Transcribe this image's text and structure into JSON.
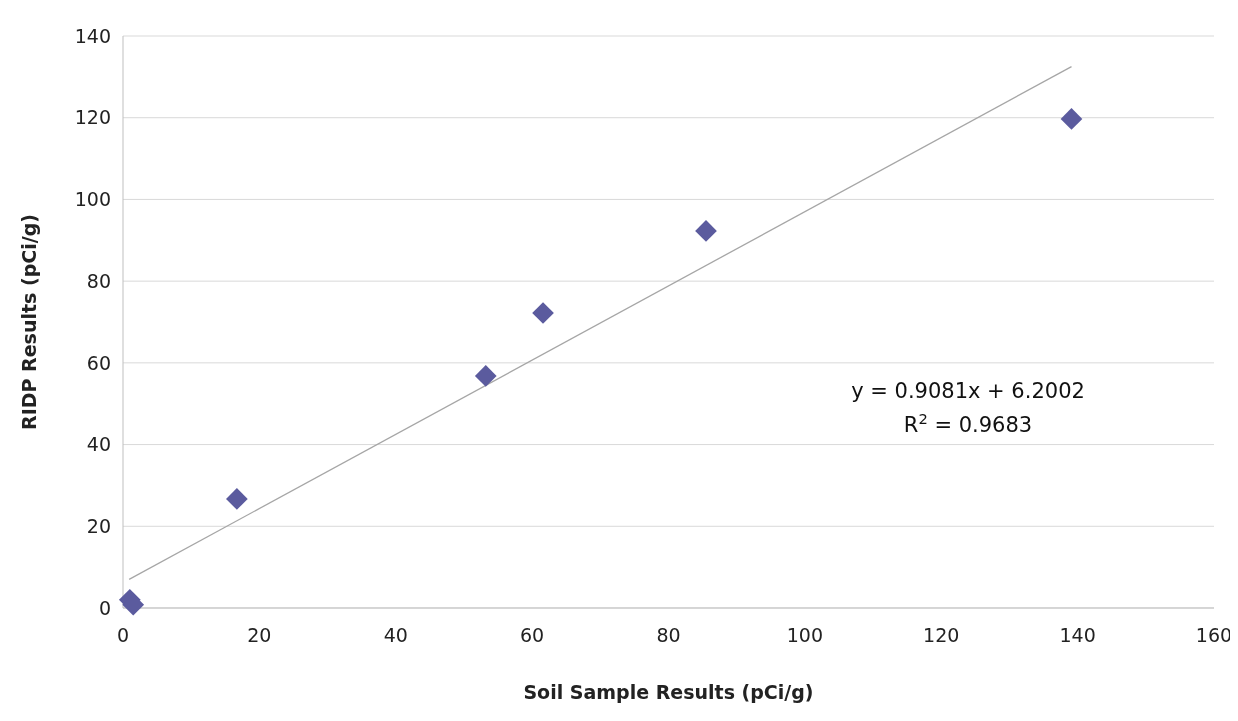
{
  "chart_data": {
    "type": "scatter",
    "xlabel": "Soil Sample Results (pCi/g)",
    "ylabel": "RIDP Results (pCi/g)",
    "series": [
      {
        "marker": "diamond",
        "color": "#5b5b9e",
        "x": [
          1.0,
          1.5,
          16.7,
          53.2,
          61.6,
          85.5,
          139.1
        ],
        "values": [
          2.0,
          0.8,
          26.7,
          56.8,
          72.2,
          92.3,
          119.7
        ]
      },
      {
        "type": "line",
        "color": "#a6a6a6",
        "x": [
          0.9,
          139.1
        ],
        "values": [
          7.0,
          132.5
        ]
      }
    ],
    "xlim": [
      0,
      160
    ],
    "xticks": [
      0,
      20,
      40,
      60,
      80,
      100,
      120,
      140,
      160
    ],
    "ylim": [
      0,
      140
    ],
    "yticks": [
      0,
      20,
      40,
      60,
      80,
      100,
      120,
      140
    ],
    "grid": "y",
    "annotations": [
      "y = 0.9081x + 6.2002",
      "R$^{2}$ = 0.9683"
    ]
  }
}
